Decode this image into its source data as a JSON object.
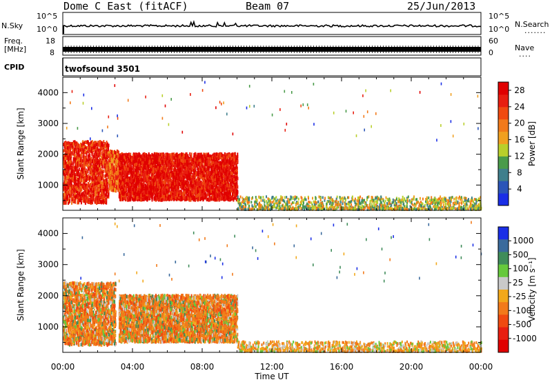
{
  "header": {
    "station": "Dome C East (fitACF)",
    "beam": "Beam 07",
    "date": "25/Jun/2013"
  },
  "noise_panel": {
    "left_label": "N.Sky",
    "left_ticks": [
      "10^5",
      "10^0"
    ],
    "right_ticks": [
      "10^5",
      "10^0"
    ],
    "right_label": "N.Search",
    "right_dots": "......."
  },
  "freq_panel": {
    "left_label_line1": "Freq.",
    "left_label_line2": "[MHz]",
    "left_ticks": [
      "18",
      "8"
    ],
    "right_ticks": [
      "60",
      "0"
    ],
    "right_label": "Nave",
    "right_dots": "...."
  },
  "cpid_panel": {
    "label": "CPID",
    "program": "twofsound 3501"
  },
  "colors": {
    "power_scale": [
      "#1a2ee6",
      "#2b55b8",
      "#3f7f8c",
      "#4a9b4a",
      "#b9cf2b",
      "#f0a020",
      "#f27a1a",
      "#f04a10",
      "#e81e10",
      "#e00000"
    ],
    "velocity_scale": [
      "#1a2ee6",
      "#3a6a9c",
      "#3f8c5a",
      "#66c93c",
      "#c9c9c9",
      "#f2a81a",
      "#f27a1a",
      "#f04a10",
      "#e81e10",
      "#e00000"
    ]
  },
  "chart_data": [
    {
      "type": "heatmap",
      "title": "",
      "xlabel": "Time UT",
      "ylabel": "Slant Range [km]",
      "colorbar_label": "Power [dB]",
      "colorbar_ticks": [
        "4",
        "8",
        "12",
        "16",
        "20",
        "24",
        "28"
      ],
      "colorbar_range": [
        0,
        30
      ],
      "xlim": [
        "00:00",
        "24:00"
      ],
      "ylim": [
        180,
        4500
      ],
      "x_ticks": [
        "00:00",
        "04:00",
        "08:00",
        "12:00",
        "16:00",
        "20:00",
        "00:00"
      ],
      "y_ticks": [
        "1000",
        "2000",
        "3000",
        "4000"
      ],
      "scatter_regions": [
        {
          "t_start": 0.0,
          "t_end": 2.6,
          "range_min": 400,
          "range_max": 2400,
          "typical_value": 24
        },
        {
          "t_start": 2.6,
          "t_end": 3.2,
          "range_min": 800,
          "range_max": 2100,
          "typical_value": 20
        },
        {
          "t_start": 3.2,
          "t_end": 10.0,
          "range_min": 500,
          "range_max": 2000,
          "typical_value": 26
        },
        {
          "t_start": 10.0,
          "t_end": 24.0,
          "range_min": 180,
          "range_max": 600,
          "typical_value": 12
        }
      ]
    },
    {
      "type": "heatmap",
      "title": "",
      "xlabel": "Time UT",
      "ylabel": "Slant Range [km]",
      "colorbar_label": "Velocity [m s^-1]",
      "colorbar_ticks": [
        "1000",
        "500",
        "100",
        "25",
        "-25",
        "-100",
        "-500",
        "-1000"
      ],
      "colorbar_range": [
        -1000,
        1000
      ],
      "xlim": [
        "00:00",
        "24:00"
      ],
      "ylim": [
        180,
        4500
      ],
      "x_ticks": [
        "00:00",
        "04:00",
        "08:00",
        "12:00",
        "16:00",
        "20:00",
        "00:00"
      ],
      "y_ticks": [
        "1000",
        "2000",
        "3000",
        "4000"
      ],
      "scatter_regions": [
        {
          "t_start": 0.0,
          "t_end": 3.0,
          "range_min": 400,
          "range_max": 2400,
          "typical_value": -150
        },
        {
          "t_start": 3.2,
          "t_end": 10.0,
          "range_min": 500,
          "range_max": 2000,
          "typical_value": -150
        },
        {
          "t_start": 10.0,
          "t_end": 24.0,
          "range_min": 180,
          "range_max": 500,
          "typical_value": -50
        }
      ]
    }
  ]
}
